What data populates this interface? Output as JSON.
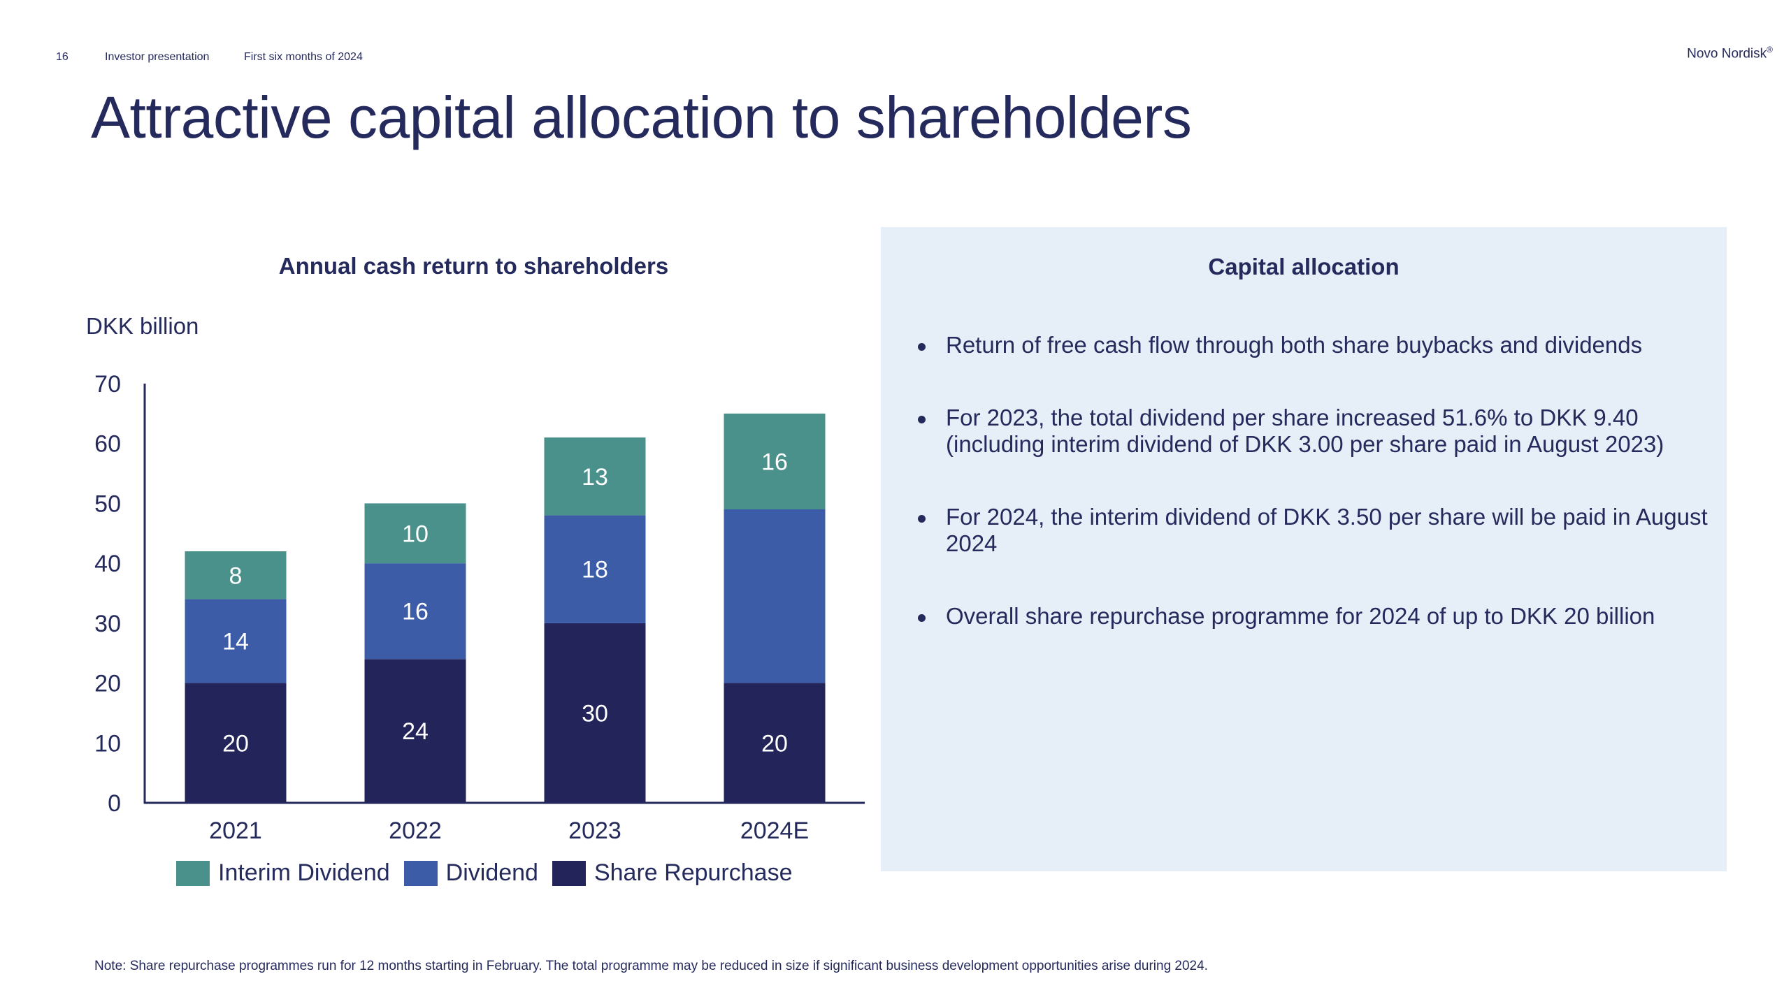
{
  "header": {
    "page_number": "16",
    "section": "Investor presentation",
    "period": "First six months of 2024",
    "brand": "Novo Nordisk",
    "brand_mark": "®"
  },
  "title": "Attractive capital allocation to shareholders",
  "chart_data": {
    "type": "bar",
    "stacked": true,
    "title": "Annual cash return to shareholders",
    "ylabel": "DKK billion",
    "xlabel": "",
    "categories": [
      "2021",
      "2022",
      "2023",
      "2024E"
    ],
    "ylim": [
      0,
      70
    ],
    "yticks": [
      0,
      10,
      20,
      30,
      40,
      50,
      60,
      70
    ],
    "grid": false,
    "legend_position": "bottom",
    "series": [
      {
        "name": "Share Repurchase",
        "color": "#23245a",
        "values": [
          20,
          24,
          30,
          20
        ],
        "labels": [
          "20",
          "24",
          "30",
          "20"
        ]
      },
      {
        "name": "Dividend",
        "color": "#3d5ca8",
        "values": [
          14,
          16,
          18,
          29
        ],
        "labels": [
          "14",
          "16",
          "18",
          ""
        ]
      },
      {
        "name": "Interim Dividend",
        "color": "#4a918b",
        "values": [
          8,
          10,
          13,
          16
        ],
        "labels": [
          "8",
          "10",
          "13",
          "16"
        ]
      }
    ],
    "legend_order": [
      "Interim Dividend",
      "Dividend",
      "Share Repurchase"
    ]
  },
  "panel": {
    "title": "Capital allocation",
    "bullets": [
      "Return of free cash flow through both share buybacks and dividends",
      "For 2023, the total dividend per share increased 51.6% to DKK 9.40 (including interim dividend of DKK 3.00 per share paid in August 2023)",
      "For 2024, the interim dividend of DKK 3.50 per share will be paid in August 2024",
      "Overall share repurchase programme for 2024 of up to DKK 20 billion"
    ]
  },
  "footnote": "Note: Share repurchase programmes run for 12 months starting in February. The total programme may be reduced in size if significant business development opportunities arise during 2024."
}
